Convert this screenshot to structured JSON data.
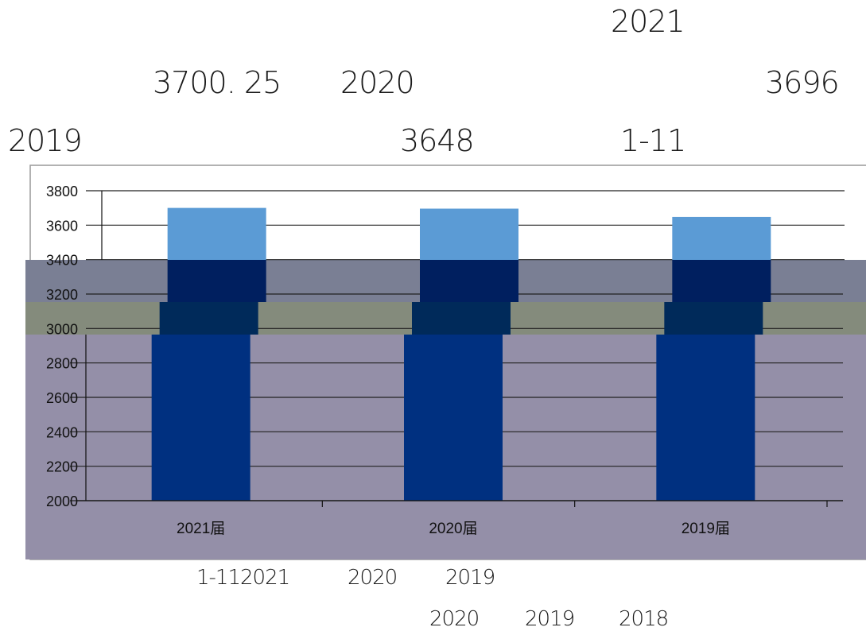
{
  "text_fragments": {
    "line1_year": "2021",
    "line2_value_a": "3700. 25",
    "line2_year": "2020",
    "line2_value_b": "3696",
    "line3_year": "2019",
    "line3_value": "3648",
    "line3_range": "1-11",
    "footer1_a": "1-112021",
    "footer1_b": "2020",
    "footer1_c": "2019",
    "footer2_a": "2020",
    "footer2_b": "2019",
    "footer2_c": "2018"
  },
  "chart_data": {
    "type": "bar",
    "categories": [
      "2021届",
      "2020届",
      "2019届"
    ],
    "values": [
      3700.25,
      3696,
      3648
    ],
    "y_ticks": [
      "2000",
      "2200",
      "2400",
      "2600",
      "2800",
      "3000",
      "3200",
      "3400",
      "3600",
      "3800"
    ],
    "ylim": [
      2000,
      3800
    ],
    "grid": true,
    "legend": "none",
    "colors": {
      "bar_top": "#5b9bd5",
      "bar_band_upper": "#001f5f",
      "bar_band_middle": "#002a5a",
      "bar_lower": "#003080",
      "overlay_upper": "#7a7f94",
      "overlay_middle": "#848b7c",
      "overlay_lower": "#948fa8",
      "gridline": "#222222",
      "border": "#999999"
    }
  }
}
